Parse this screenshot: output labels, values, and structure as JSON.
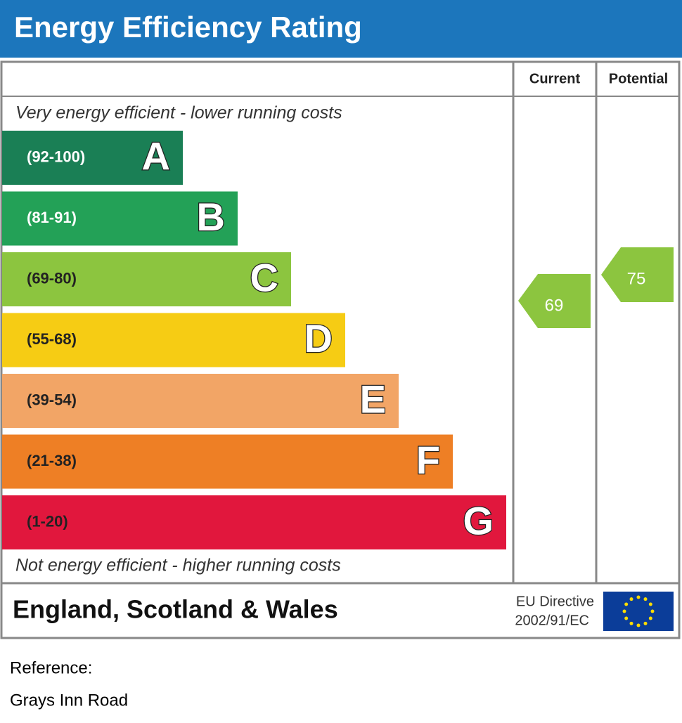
{
  "header": {
    "title": "Energy Efficiency Rating"
  },
  "columns": [
    "Current",
    "Potential"
  ],
  "top_note": "Very energy efficient - lower running costs",
  "bottom_note": "Not energy efficient - higher running costs",
  "bands": [
    {
      "range": "(92-100)",
      "letter": "A",
      "color": "#1a7f55"
    },
    {
      "range": "(81-91)",
      "letter": "B",
      "color": "#23a157"
    },
    {
      "range": "(69-80)",
      "letter": "C",
      "color": "#8cc53f"
    },
    {
      "range": "(55-68)",
      "letter": "D",
      "color": "#f6cc14"
    },
    {
      "range": "(39-54)",
      "letter": "E",
      "color": "#f2a566"
    },
    {
      "range": "(21-38)",
      "letter": "F",
      "color": "#ee7f25"
    },
    {
      "range": "(1-20)",
      "letter": "G",
      "color": "#e1173d"
    }
  ],
  "current": {
    "value": 69,
    "color": "#8cc53f"
  },
  "potential": {
    "value": 75,
    "color": "#8cc53f"
  },
  "footer": {
    "region": "England, Scotland & Wales",
    "directive": [
      "EU Directive",
      "2002/91/EC"
    ]
  },
  "reference": {
    "label": "Reference:",
    "text": "Grays Inn Road"
  }
}
